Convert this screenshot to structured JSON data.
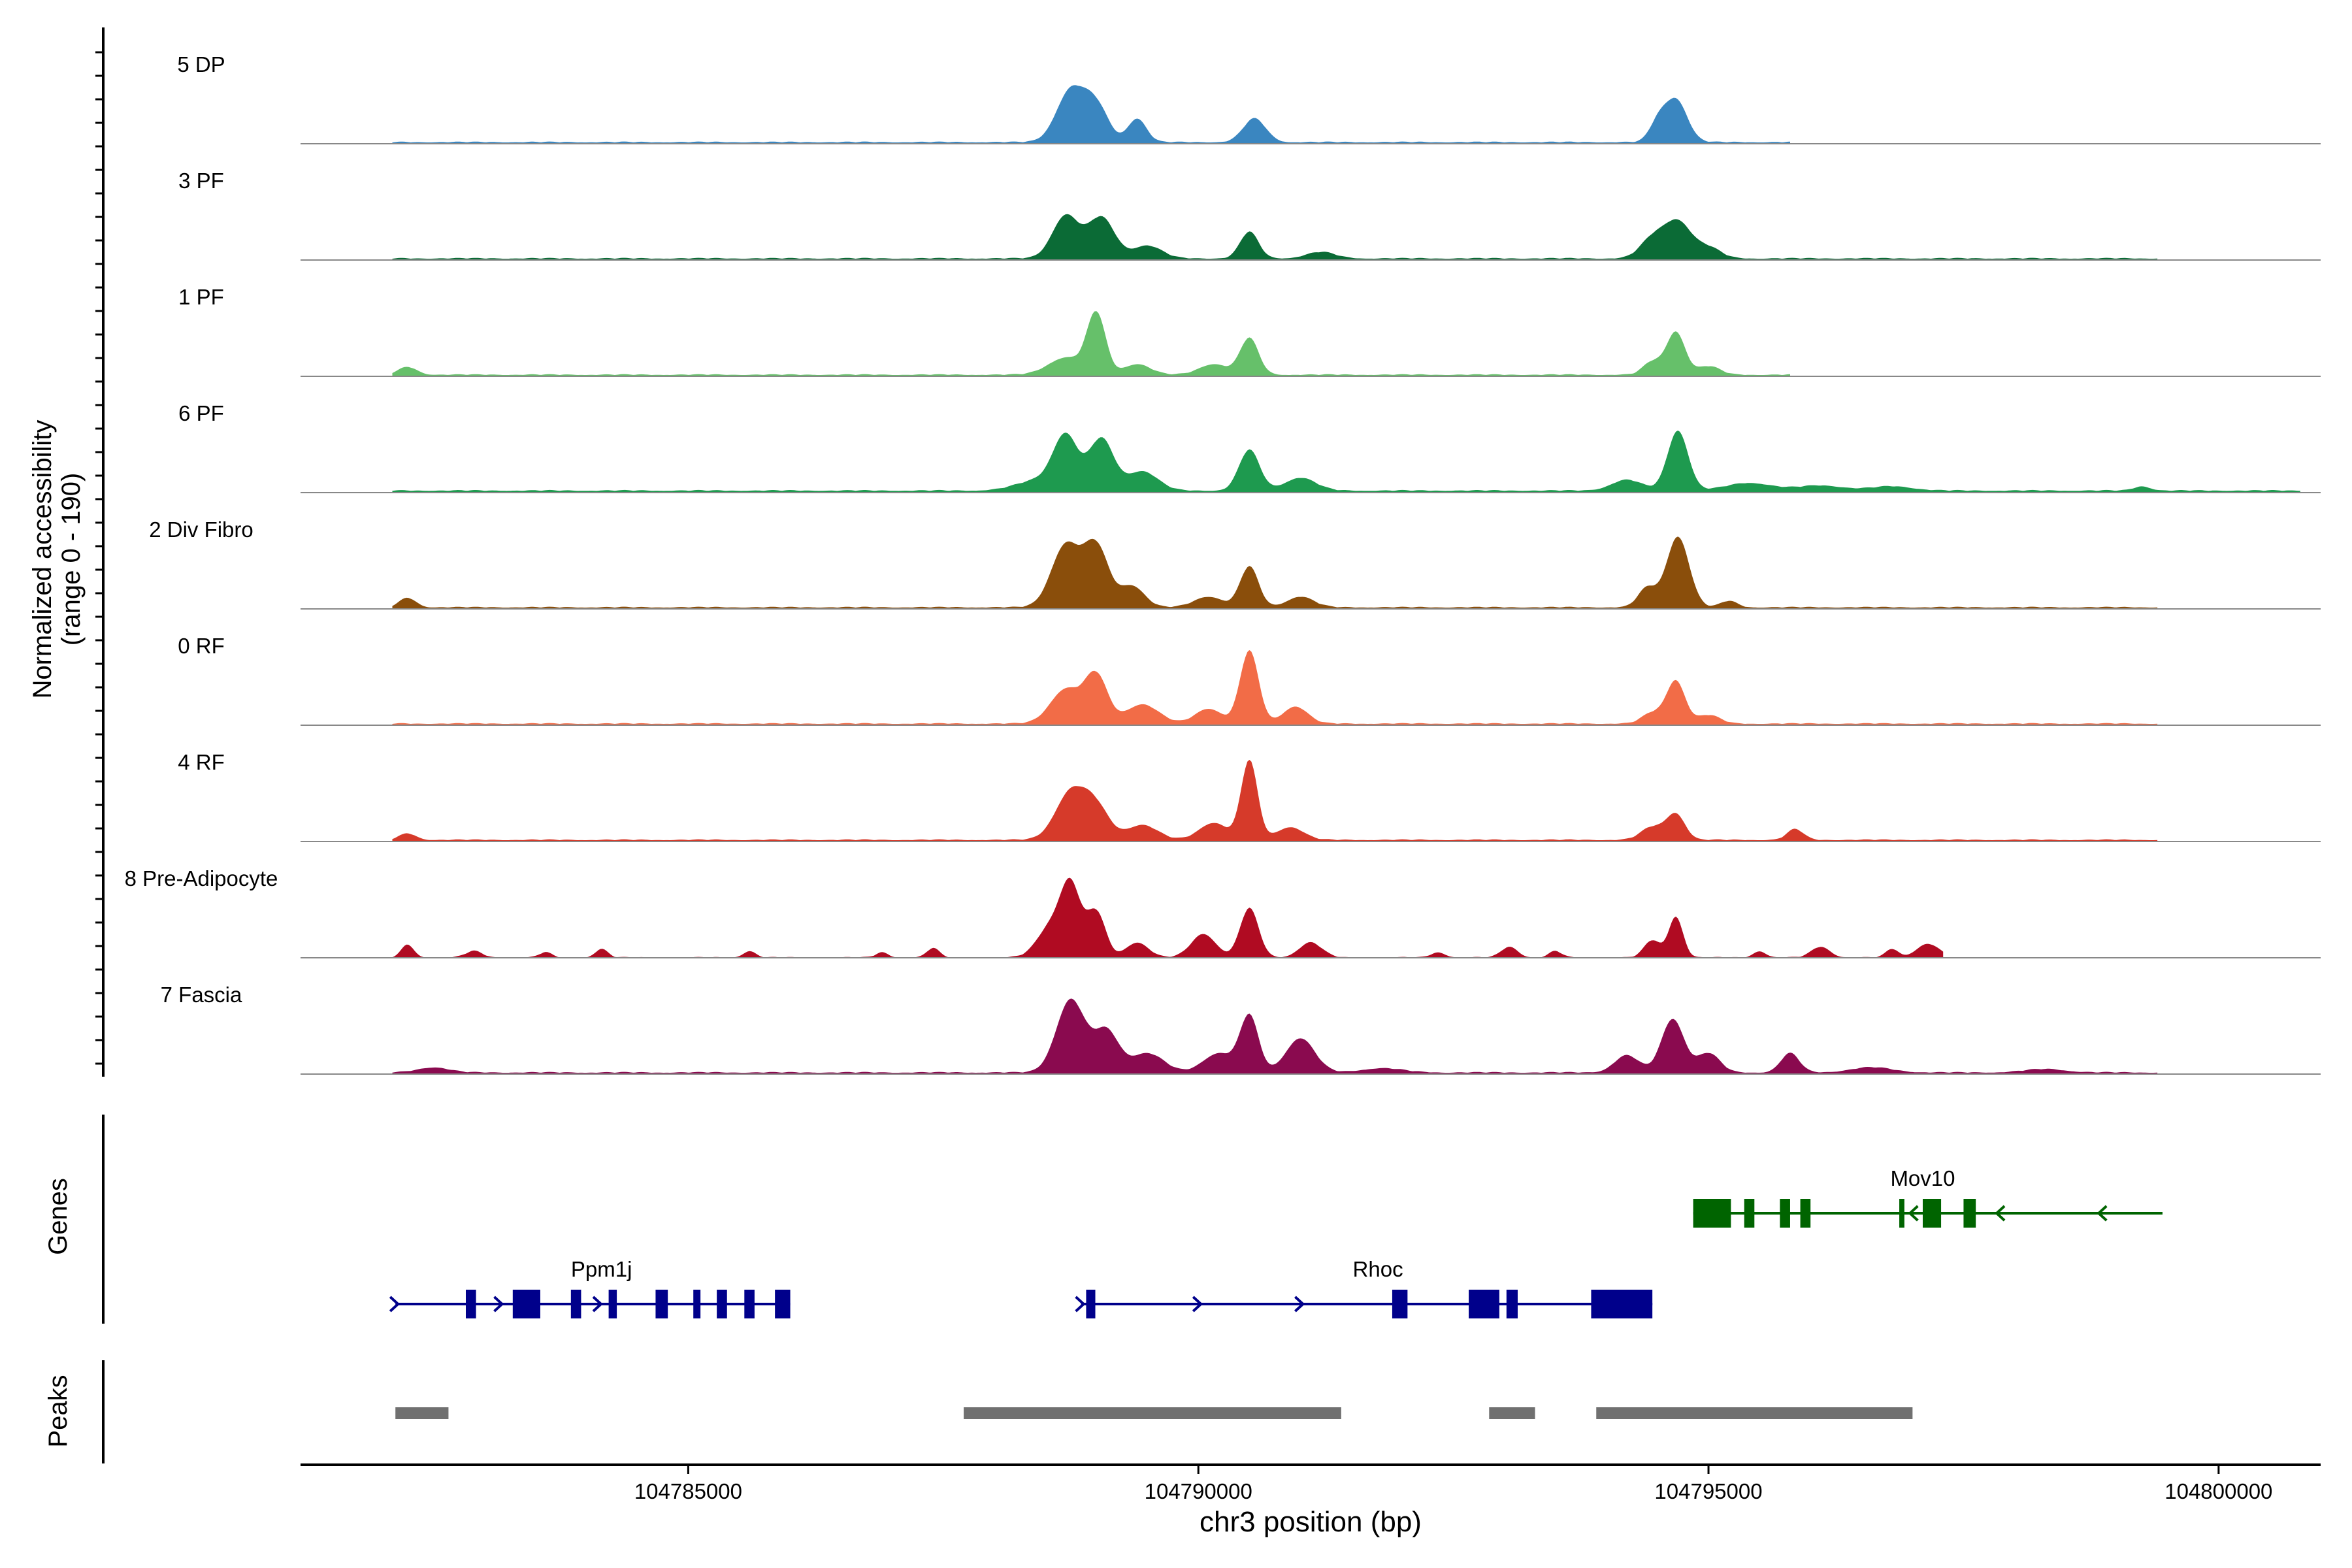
{
  "chart_data": {
    "type": "area",
    "title": "",
    "ylabel_line1": "Normalized accessibility",
    "ylabel_line2": "(range 0 - 190)",
    "ylim": [
      0,
      190
    ],
    "xlabel": "chr3 position (bp)",
    "xlim": [
      104781200,
      104801000
    ],
    "xticks": [
      {
        "value": 104785000,
        "label": "104785000"
      },
      {
        "value": 104790000,
        "label": "104790000"
      },
      {
        "value": 104795000,
        "label": "104795000"
      },
      {
        "value": 104800000,
        "label": "104800000"
      }
    ],
    "series": [
      {
        "name": "5 DP",
        "color": "#3a86c0",
        "region": [
          104782100,
          104795800
        ],
        "baseline": 3,
        "peaks": [
          [
            104788750,
            120,
            140
          ],
          [
            104789000,
            80,
            120
          ],
          [
            104789400,
            55,
            90
          ],
          [
            104790550,
            55,
            110
          ],
          [
            104794680,
            100,
            110
          ],
          [
            104794500,
            40,
            80
          ]
        ]
      },
      {
        "name": "3 PF",
        "color": "#0b6b36",
        "region": [
          104782100,
          104799400
        ],
        "baseline": 3,
        "peaks": [
          [
            104788700,
            100,
            130
          ],
          [
            104789050,
            95,
            130
          ],
          [
            104789500,
            30,
            140
          ],
          [
            104790500,
            62,
            90
          ],
          [
            104791200,
            15,
            140
          ],
          [
            104794450,
            45,
            120
          ],
          [
            104794700,
            85,
            130
          ],
          [
            104795000,
            25,
            120
          ]
        ]
      },
      {
        "name": "1 PF",
        "color": "#66c06a",
        "region": [
          104782100,
          104795800
        ],
        "baseline": 3,
        "peaks": [
          [
            104782250,
            18,
            90
          ],
          [
            104788700,
            40,
            170
          ],
          [
            104789000,
            140,
            90
          ],
          [
            104789400,
            25,
            130
          ],
          [
            104790150,
            25,
            140
          ],
          [
            104790500,
            85,
            90
          ],
          [
            104794450,
            30,
            90
          ],
          [
            104794680,
            100,
            90
          ],
          [
            104795000,
            20,
            110
          ]
        ]
      },
      {
        "name": "6 PF",
        "color": "#1e9a4f",
        "region": [
          104782100,
          104800800
        ],
        "baseline": 4,
        "peaks": [
          [
            104788450,
            25,
            220
          ],
          [
            104788700,
            120,
            120
          ],
          [
            104789050,
            120,
            120
          ],
          [
            104789450,
            45,
            150
          ],
          [
            104790500,
            95,
            100
          ],
          [
            104791000,
            30,
            150
          ],
          [
            104794200,
            25,
            150
          ],
          [
            104794700,
            140,
            100
          ],
          [
            104795400,
            18,
            220
          ],
          [
            104796100,
            12,
            220
          ],
          [
            104796800,
            10,
            200
          ],
          [
            104799250,
            10,
            80
          ]
        ]
      },
      {
        "name": "2 Div Fibro",
        "color": "#8a4e0b",
        "region": [
          104782100,
          104799400
        ],
        "baseline": 3,
        "peaks": [
          [
            104782250,
            22,
            80
          ],
          [
            104788700,
            145,
            140
          ],
          [
            104789000,
            140,
            120
          ],
          [
            104789350,
            50,
            120
          ],
          [
            104790100,
            25,
            140
          ],
          [
            104790500,
            95,
            90
          ],
          [
            104791000,
            25,
            130
          ],
          [
            104794400,
            45,
            90
          ],
          [
            104794700,
            165,
            110
          ],
          [
            104795200,
            15,
            80
          ]
        ]
      },
      {
        "name": "0 RF",
        "color": "#f26c47",
        "region": [
          104782100,
          104799400
        ],
        "baseline": 3,
        "peaks": [
          [
            104788700,
            80,
            150
          ],
          [
            104789000,
            110,
            110
          ],
          [
            104789450,
            45,
            160
          ],
          [
            104790100,
            35,
            130
          ],
          [
            104790500,
            170,
            90
          ],
          [
            104790950,
            40,
            120
          ],
          [
            104794450,
            25,
            100
          ],
          [
            104794680,
            100,
            90
          ],
          [
            104795000,
            20,
            110
          ]
        ]
      },
      {
        "name": "4 RF",
        "color": "#d63a2a",
        "region": [
          104782100,
          104799400
        ],
        "baseline": 3,
        "peaks": [
          [
            104782250,
            15,
            80
          ],
          [
            104788750,
            110,
            150
          ],
          [
            104789000,
            70,
            130
          ],
          [
            104789450,
            35,
            150
          ],
          [
            104790150,
            40,
            140
          ],
          [
            104790500,
            185,
            80
          ],
          [
            104790900,
            30,
            130
          ],
          [
            104794450,
            30,
            110
          ],
          [
            104794680,
            60,
            90
          ],
          [
            104795850,
            25,
            80
          ]
        ]
      },
      {
        "name": "8 Pre-Adipocyte",
        "color": "#b00b22",
        "region": [
          104782100,
          104797300
        ],
        "baseline": 0,
        "peaks": [
          [
            104782250,
            30,
            60
          ],
          [
            104782900,
            15,
            80
          ],
          [
            104783600,
            12,
            60
          ],
          [
            104784150,
            20,
            60
          ],
          [
            104785600,
            15,
            60
          ],
          [
            104786900,
            12,
            60
          ],
          [
            104787400,
            22,
            60
          ],
          [
            104788550,
            70,
            130
          ],
          [
            104788750,
            160,
            100
          ],
          [
            104789000,
            105,
            90
          ],
          [
            104789400,
            35,
            110
          ],
          [
            104790050,
            55,
            120
          ],
          [
            104790500,
            115,
            90
          ],
          [
            104791100,
            35,
            110
          ],
          [
            104792350,
            12,
            70
          ],
          [
            104793050,
            25,
            80
          ],
          [
            104793500,
            15,
            60
          ],
          [
            104794450,
            40,
            80
          ],
          [
            104794680,
            95,
            70
          ],
          [
            104795500,
            15,
            60
          ],
          [
            104796100,
            25,
            90
          ],
          [
            104796800,
            20,
            60
          ],
          [
            104797150,
            32,
            110
          ]
        ]
      },
      {
        "name": "7 Fascia",
        "color": "#8a0a4f",
        "region": [
          104782100,
          104799400
        ],
        "baseline": 3,
        "peaks": [
          [
            104782500,
            12,
            150
          ],
          [
            104788750,
            170,
            140
          ],
          [
            104789100,
            95,
            120
          ],
          [
            104789500,
            45,
            160
          ],
          [
            104790200,
            45,
            150
          ],
          [
            104790500,
            130,
            90
          ],
          [
            104791000,
            80,
            140
          ],
          [
            104791800,
            10,
            200
          ],
          [
            104794200,
            40,
            120
          ],
          [
            104794650,
            125,
            110
          ],
          [
            104795000,
            45,
            110
          ],
          [
            104795800,
            45,
            90
          ],
          [
            104796600,
            12,
            200
          ],
          [
            104798300,
            8,
            200
          ]
        ]
      }
    ],
    "genes_label": "Genes",
    "genes": [
      {
        "name": "Ppm1j",
        "strand": "+",
        "color": "#00008b",
        "start": 104782130,
        "end": 104786000,
        "label_pos": 104784150,
        "row": "lower",
        "exons": [
          [
            104782820,
            104782920
          ],
          [
            104783280,
            104783550
          ],
          [
            104783850,
            104783950
          ],
          [
            104784220,
            104784300
          ],
          [
            104784680,
            104784800
          ],
          [
            104785050,
            104785120
          ],
          [
            104785280,
            104785380
          ],
          [
            104785550,
            104785650
          ],
          [
            104785850,
            104786000
          ]
        ],
        "arrows": [
          104782130,
          104783150,
          104784120
        ]
      },
      {
        "name": "Rhoc",
        "strand": "+",
        "color": "#00008b",
        "start": 104788850,
        "end": 104794450,
        "label_pos": 104791760,
        "row": "lower",
        "exons": [
          [
            104788900,
            104788990
          ],
          [
            104791900,
            104792050
          ],
          [
            104792650,
            104792950
          ],
          [
            104793020,
            104793130
          ],
          [
            104793850,
            104794450
          ]
        ],
        "arrows": [
          104788850,
          104790000,
          104791000
        ]
      },
      {
        "name": "Mov10",
        "strand": "-",
        "color": "#006400",
        "start": 104794850,
        "end": 104799450,
        "label_pos": 104797100,
        "row": "upper",
        "exons": [
          [
            104794850,
            104795220
          ],
          [
            104795350,
            104795450
          ],
          [
            104795700,
            104795800
          ],
          [
            104795900,
            104796000
          ],
          [
            104796870,
            104796920
          ],
          [
            104797100,
            104797280
          ],
          [
            104797500,
            104797620
          ]
        ],
        "arrows": [
          104797000,
          104797850,
          104798850
        ]
      }
    ],
    "peaks_label": "Peaks",
    "peaks_color": "#707070",
    "peak_regions": [
      [
        104782130,
        104782650
      ],
      [
        104787700,
        104791400
      ],
      [
        104792850,
        104793300
      ],
      [
        104793900,
        104797000
      ]
    ]
  }
}
